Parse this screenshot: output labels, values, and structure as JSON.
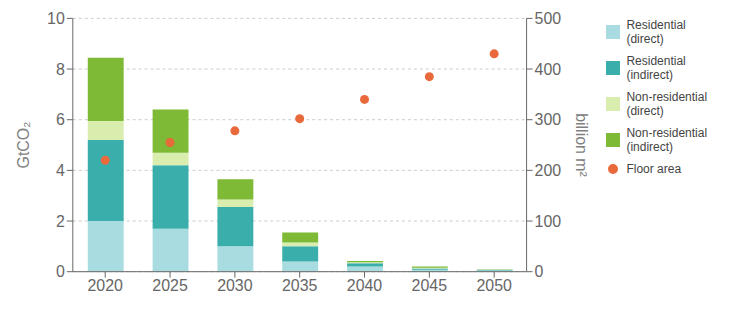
{
  "chart_data": {
    "type": "bar",
    "stacked": true,
    "grid": true,
    "legend": "right",
    "categories": [
      "2020",
      "2025",
      "2030",
      "2035",
      "2040",
      "2045",
      "2050"
    ],
    "ylabel": "GtCO₂",
    "y2label": "billion m²",
    "ylim": [
      0,
      10
    ],
    "yticks": [
      0,
      2,
      4,
      6,
      8,
      10
    ],
    "y2lim": [
      0,
      500
    ],
    "y2ticks": [
      0,
      100,
      200,
      300,
      400,
      500
    ],
    "series": [
      {
        "name": "Residential\n(direct)",
        "type": "bar",
        "color": "#a8dce1",
        "values": [
          2.0,
          1.7,
          1.0,
          0.4,
          0.2,
          0.08,
          0.05
        ]
      },
      {
        "name": "Residential\n(indirect)",
        "type": "bar",
        "color": "#3aaeaa",
        "values": [
          3.2,
          2.5,
          1.55,
          0.6,
          0.13,
          0.05,
          0.03
        ]
      },
      {
        "name": "Non-residential\n(direct)",
        "type": "bar",
        "color": "#d9edaf",
        "values": [
          0.75,
          0.5,
          0.3,
          0.15,
          0.04,
          0.03,
          0.01
        ]
      },
      {
        "name": "Non-residential\n(indirect)",
        "type": "bar",
        "color": "#7eba35",
        "values": [
          2.5,
          1.7,
          0.8,
          0.4,
          0.05,
          0.04,
          0.01
        ]
      },
      {
        "name": "Floor area",
        "type": "scatter",
        "axis": "y2",
        "marker": "circle",
        "color": "#e8693a",
        "values": [
          220,
          255,
          278,
          302,
          340,
          385,
          430
        ]
      }
    ]
  }
}
